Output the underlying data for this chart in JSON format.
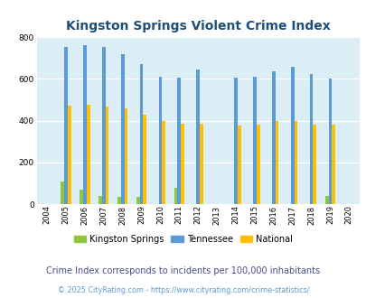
{
  "title": "Kingston Springs Violent Crime Index",
  "years": [
    2004,
    2005,
    2006,
    2007,
    2008,
    2009,
    2010,
    2011,
    2012,
    2013,
    2014,
    2015,
    2016,
    2017,
    2018,
    2019,
    2020
  ],
  "kingston_springs": [
    0,
    107,
    68,
    40,
    33,
    33,
    0,
    78,
    0,
    0,
    0,
    0,
    0,
    0,
    0,
    40,
    0
  ],
  "tennessee": [
    0,
    755,
    762,
    753,
    720,
    670,
    610,
    608,
    645,
    0,
    608,
    610,
    635,
    657,
    622,
    600,
    0
  ],
  "national": [
    0,
    470,
    477,
    468,
    457,
    429,
    400,
    387,
    387,
    0,
    375,
    380,
    398,
    399,
    382,
    380,
    0
  ],
  "bar_width": 0.18,
  "ylim": [
    0,
    800
  ],
  "yticks": [
    0,
    200,
    400,
    600,
    800
  ],
  "bg_color": "#dceef5",
  "color_kingston": "#8dc63f",
  "color_tennessee": "#5b9bd5",
  "color_national": "#ffc000",
  "subtitle": "Crime Index corresponds to incidents per 100,000 inhabitants",
  "footnote": "© 2025 CityRating.com - https://www.cityrating.com/crime-statistics/",
  "title_color": "#1f4e79",
  "subtitle_color": "#4a4a8a",
  "footnote_color": "#5b9bd5"
}
